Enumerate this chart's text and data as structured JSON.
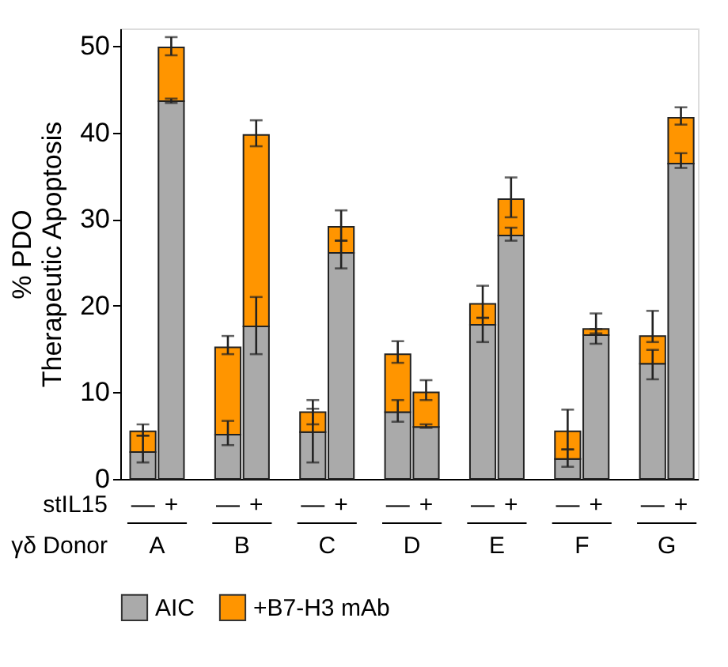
{
  "chart_data": {
    "type": "bar",
    "stacked": true,
    "ylabel": "% PDO\nTherapeutic Apoptosis",
    "categories": [
      "—",
      "+",
      "—",
      "+",
      "—",
      "+",
      "—",
      "+",
      "—",
      "+",
      "—",
      "+",
      "—",
      "+"
    ],
    "series": [
      {
        "name": "AIC",
        "color": "#aaaaaa",
        "values": [
          3.1,
          43.6,
          5.1,
          17.6,
          5.4,
          26.1,
          7.7,
          6.0,
          17.8,
          28.1,
          2.3,
          16.6,
          13.3,
          36.4
        ],
        "errors": [
          [
            1.9,
            5.0
          ],
          [
            43.4,
            43.9
          ],
          [
            3.9,
            6.7
          ],
          [
            14.4,
            21.0
          ],
          [
            1.9,
            8.1
          ],
          [
            24.3,
            27.5
          ],
          [
            6.6,
            9.1
          ],
          [
            5.9,
            6.3
          ],
          [
            15.8,
            18.6
          ],
          [
            27.5,
            29.0
          ],
          [
            1.4,
            3.4
          ],
          [
            15.6,
            17.3
          ],
          [
            11.5,
            14.9
          ],
          [
            35.9,
            37.6
          ]
        ]
      },
      {
        "name": "+B7-H3 mAb",
        "color": "#ff9500",
        "values": [
          2.4,
          6.2,
          10.1,
          22.1,
          2.3,
          3.0,
          6.7,
          4.0,
          2.4,
          4.2,
          3.2,
          0.7,
          3.2,
          5.3
        ],
        "errors": [
          [
            5.0,
            6.3
          ],
          [
            48.9,
            51.0
          ],
          [
            14.4,
            16.5
          ],
          [
            38.4,
            41.4
          ],
          [
            6.3,
            9.1
          ],
          [
            27.5,
            31.0
          ],
          [
            13.4,
            15.9
          ],
          [
            9.1,
            11.4
          ],
          [
            18.6,
            22.3
          ],
          [
            30.2,
            34.8
          ],
          [
            3.4,
            8.0
          ],
          [
            16.8,
            19.1
          ],
          [
            15.8,
            19.4
          ],
          [
            40.9,
            42.9
          ]
        ]
      }
    ],
    "ylim": [
      0,
      52
    ],
    "yticks": [
      0,
      10,
      20,
      30,
      40,
      50
    ],
    "grid": false,
    "legend": "bottom",
    "annotations": [
      "stIL15",
      "γδ Donor",
      "A",
      "B",
      "C",
      "D",
      "E",
      "F",
      "G"
    ]
  }
}
